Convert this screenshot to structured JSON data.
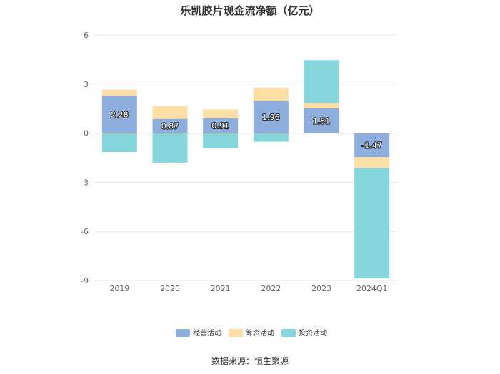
{
  "chart_data": {
    "type": "bar",
    "stacked": true,
    "title": "乐凯胶片现金流净额（亿元）",
    "categories": [
      "2019",
      "2020",
      "2021",
      "2022",
      "2023",
      "2024Q1"
    ],
    "series": [
      {
        "name": "经营活动",
        "color": "#8eaedd",
        "values": [
          2.28,
          0.87,
          0.91,
          1.96,
          1.51,
          -1.47
        ],
        "labels": [
          "2.28",
          "0.87",
          "0.91",
          "1.96",
          "1.51",
          "-1.47"
        ]
      },
      {
        "name": "筹资活动",
        "color": "#fddea4",
        "values": [
          0.38,
          0.78,
          0.54,
          0.82,
          0.33,
          -0.65
        ]
      },
      {
        "name": "投资活动",
        "color": "#86d7db",
        "values": [
          -1.15,
          -1.8,
          -0.93,
          -0.52,
          2.62,
          -6.74
        ]
      }
    ],
    "yticks": [
      6,
      3,
      0,
      -3,
      -6,
      -9
    ],
    "ylim": [
      -9,
      6
    ],
    "grid": true,
    "legend_position": "bottom"
  },
  "source_text": "数据来源：恒生聚源"
}
